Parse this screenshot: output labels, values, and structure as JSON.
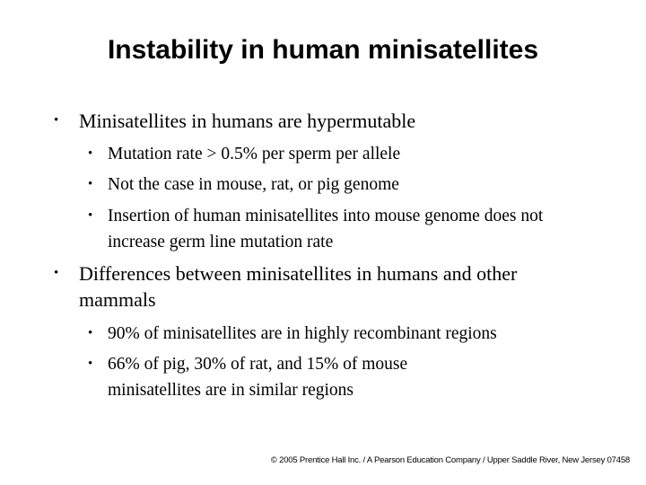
{
  "slide": {
    "title": "Instability in human minisatellites",
    "bullets": [
      {
        "text": "Minisatellites in humans are hypermutable",
        "sub": [
          "Mutation rate > 0.5% per sperm per allele",
          "Not the case in mouse, rat, or pig genome",
          "Insertion of human minisatellites into mouse genome does not increase germ line mutation rate"
        ]
      },
      {
        "text": "Differences between minisatellites in humans and other mammals",
        "sub": [
          "90% of minisatellites are in highly recombinant regions",
          "66% of pig, 30% of rat, and 15% of mouse minisatellites are in similar regions"
        ]
      }
    ],
    "bullet_glyph": "•",
    "footer": "© 2005 Prentice Hall Inc. / A Pearson Education Company / Upper Saddle River, New Jersey 07458"
  }
}
